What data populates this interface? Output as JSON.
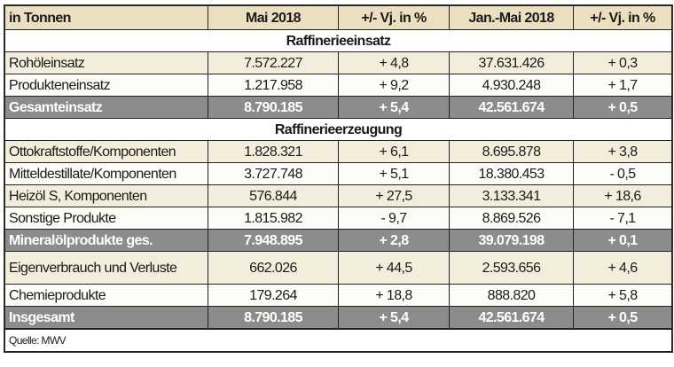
{
  "header": [
    "in Tonnen",
    "Mai 2018",
    "+/- Vj. in %",
    "Jan.-Mai 2018",
    "+/- Vj. in %"
  ],
  "rows": [
    {
      "type": "section",
      "label": "Raffinerieeinsatz"
    },
    {
      "type": "beige",
      "cells": [
        "Rohöleinsatz",
        "7.572.227",
        "+ 4,8",
        "37.631.426",
        "+ 0,3"
      ]
    },
    {
      "type": "white",
      "cells": [
        "Produkteneinsatz",
        "1.217.958",
        "+ 9,2",
        "4.930.248",
        "+ 1,7"
      ]
    },
    {
      "type": "total",
      "cells": [
        "Gesamteinsatz",
        "8.790.185",
        "+ 5,4",
        "42.561.674",
        "+ 0,5"
      ]
    },
    {
      "type": "section",
      "label": "Raffinerieerzeugung"
    },
    {
      "type": "beige",
      "cells": [
        "Ottokraftstoffe/Komponenten",
        "1.828.321",
        "+ 6,1",
        "8.695.878",
        "+ 3,8"
      ]
    },
    {
      "type": "white",
      "cells": [
        "Mitteldestillate/Komponenten",
        "3.727.748",
        "+ 5,1",
        "18.380.453",
        "- 0,5"
      ]
    },
    {
      "type": "beige",
      "cells": [
        "Heizöl S, Komponenten",
        "576.844",
        "+ 27,5",
        "3.133.341",
        "+ 18,6"
      ]
    },
    {
      "type": "white",
      "cells": [
        "Sonstige Produkte",
        "1.815.982",
        "- 9,7",
        "8.869.526",
        "- 7,1"
      ]
    },
    {
      "type": "total",
      "cells": [
        "Mineralölprodukte ges.",
        "7.948.895",
        "+ 2,8",
        "39.079.198",
        "+ 0,1"
      ]
    },
    {
      "type": "beige tall",
      "cells": [
        "Eigenverbrauch und Verluste",
        "662.026",
        "+ 44,5",
        "2.593.656",
        "+ 4,6"
      ]
    },
    {
      "type": "white",
      "cells": [
        "Chemieprodukte",
        "179.264",
        "+ 18,8",
        "888.820",
        "+ 5,8"
      ]
    },
    {
      "type": "total",
      "cells": [
        "Insgesamt",
        "8.790.185",
        "+ 5,4",
        "42.561.674",
        "+ 0,5"
      ]
    }
  ],
  "source": "Quelle: MWV",
  "colors": {
    "header": "#ecdfc0",
    "row_beige": "#f3eedc",
    "total": "#8c8c8c"
  }
}
